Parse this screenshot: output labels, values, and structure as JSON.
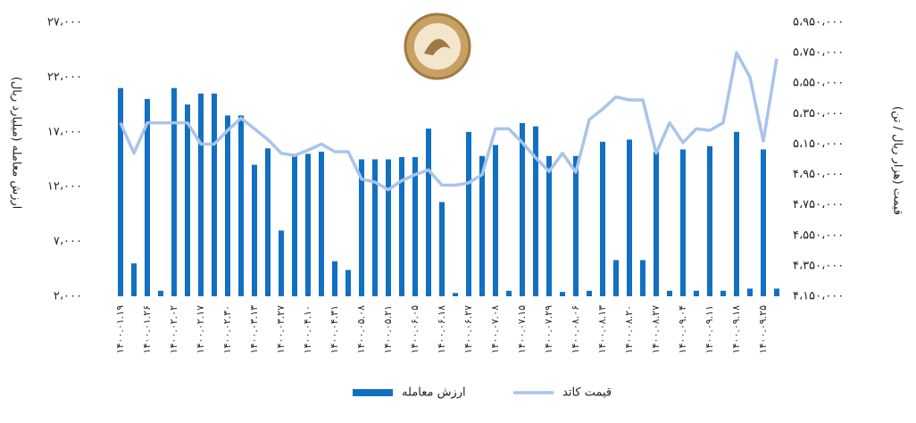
{
  "chart_data": {
    "type": "bar_line",
    "y_label": "ارزش معامله (میلیارد ریال)",
    "y2_label": "قیمت (هزار ریال / تن)",
    "categories": [
      "۱۴۰۰.۰۱.۱۹",
      null,
      "۱۴۰۰.۰۱.۲۶",
      null,
      "۱۴۰۰.۰۲.۰۲",
      null,
      "۱۴۰۰.۰۲.۱۷",
      null,
      "۱۴۰۰.۰۲.۳۰",
      null,
      "۱۴۰۰.۰۳.۱۳",
      null,
      "۱۴۰۰.۰۳.۲۷",
      null,
      "۱۴۰۰.۰۴.۱۰",
      null,
      "۱۴۰۰.۰۴.۳۱",
      null,
      "۱۴۰۰.۰۵.۰۸",
      null,
      "۱۴۰۰.۰۵.۲۱",
      null,
      "۱۴۰۰.۰۶.۰۵",
      null,
      "۱۴۰۰.۰۶.۱۸",
      null,
      "۱۴۰۰.۰۶.۲۷",
      null,
      "۱۴۰۰.۰۷.۰۸",
      null,
      "۱۴۰۰.۰۷.۱۵",
      null,
      "۱۴۰۰.۰۷.۲۹",
      null,
      "۱۴۰۰.۰۸.۰۶",
      null,
      "۱۴۰۰.۰۸.۱۳",
      null,
      "۱۴۰۰.۰۸.۲۰",
      null,
      "۱۴۰۰.۰۸.۲۷",
      null,
      "۱۴۰۰.۰۹.۰۴",
      null,
      "۱۴۰۰.۰۹.۱۱",
      null,
      "۱۴۰۰.۰۹.۱۸",
      null,
      "۱۴۰۰.۰۹.۲۵",
      null
    ],
    "series": [
      {
        "name": "ارزش معامله",
        "kind": "bar",
        "color": "#1170c2",
        "axis": "y",
        "values": [
          21000,
          5000,
          20000,
          2500,
          21000,
          19500,
          20500,
          20500,
          18500,
          18500,
          14000,
          15500,
          8000,
          15000,
          15000,
          15200,
          5200,
          4400,
          14500,
          14500,
          14500,
          14700,
          14700,
          17300,
          10600,
          2300,
          17000,
          14800,
          15800,
          2500,
          17800,
          17500,
          14800,
          2400,
          14800,
          2500,
          16100,
          5300,
          16300,
          5300,
          15200,
          2500,
          15400,
          2500,
          15700,
          2500,
          17000,
          2700,
          15400,
          2700
        ]
      },
      {
        "name": "قیمت  کاتد",
        "kind": "line",
        "color": "#a9c4eb",
        "axis": "y2",
        "values": [
          5290000,
          5090000,
          5290000,
          5290000,
          5290000,
          5290000,
          5150000,
          5150000,
          5240000,
          5320000,
          5250000,
          5180000,
          5090000,
          5075000,
          5110000,
          5150000,
          5100000,
          5100000,
          4920000,
          4900000,
          4850000,
          4910000,
          4950000,
          4980000,
          4880000,
          4880000,
          4895000,
          4950000,
          5250000,
          5250000,
          5160000,
          5060000,
          4970000,
          5090000,
          4965000,
          5310000,
          5380000,
          5460000,
          5440000,
          5440000,
          5090000,
          5290000,
          5160000,
          5250000,
          5240000,
          5290000,
          5750000,
          5590000,
          5170000,
          5710000
        ]
      }
    ],
    "ylim": [
      2000,
      27000
    ],
    "yticks": [
      {
        "value": 2000,
        "label": "۲،۰۰۰"
      },
      {
        "value": 7000,
        "label": "۷،۰۰۰"
      },
      {
        "value": 12000,
        "label": "۱۲،۰۰۰"
      },
      {
        "value": 17000,
        "label": "۱۷،۰۰۰"
      },
      {
        "value": 22000,
        "label": "۲۲،۰۰۰"
      },
      {
        "value": 27000,
        "label": "۲۷،۰۰۰"
      }
    ],
    "y2lim": [
      4150000,
      5950000
    ],
    "y2ticks": [
      {
        "value": 4150000,
        "label": "۴،۱۵۰،۰۰۰"
      },
      {
        "value": 4350000,
        "label": "۴،۳۵۰،۰۰۰"
      },
      {
        "value": 4550000,
        "label": "۴،۵۵۰،۰۰۰"
      },
      {
        "value": 4750000,
        "label": "۴،۷۵۰،۰۰۰"
      },
      {
        "value": 4950000,
        "label": "۴،۹۵۰،۰۰۰"
      },
      {
        "value": 5150000,
        "label": "۵،۱۵۰،۰۰۰"
      },
      {
        "value": 5350000,
        "label": "۵،۳۵۰،۰۰۰"
      },
      {
        "value": 5550000,
        "label": "۵،۵۵۰،۰۰۰"
      },
      {
        "value": 5750000,
        "label": "۵،۷۵۰،۰۰۰"
      },
      {
        "value": 5950000,
        "label": "۵،۹۵۰،۰۰۰"
      }
    ],
    "legend": "bottom"
  }
}
